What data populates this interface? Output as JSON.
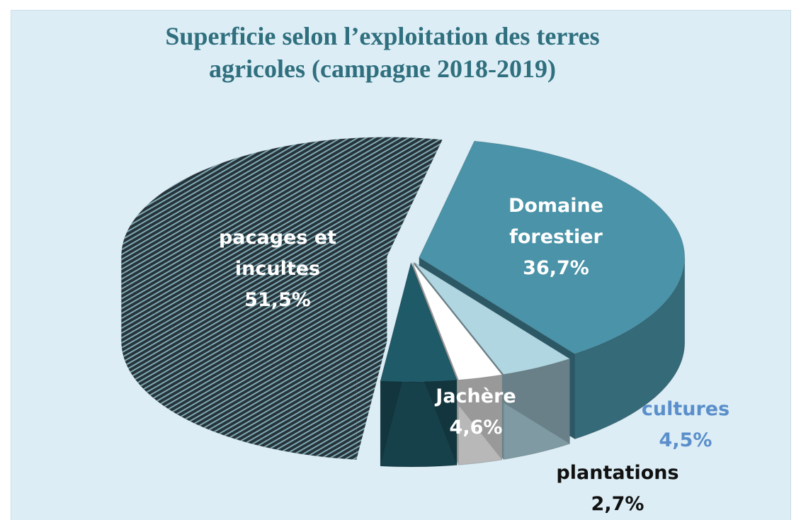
{
  "chart_data": {
    "type": "pie3d",
    "title": "Superficie selon l’exploitation des terres agricoles (campagne  2018-2019)",
    "categories": [
      "Domaine forestier",
      "cultures",
      "plantations",
      "Jachère",
      "pacages et incultes"
    ],
    "values": [
      36.7,
      4.5,
      2.7,
      4.6,
      51.5
    ],
    "value_labels": [
      "36,7%",
      "4,5%",
      "2,7%",
      "4,6%",
      "51,5%"
    ],
    "colors": [
      "#4a93a8",
      "#b0d6e2",
      "#ffffff",
      "#1f5a68",
      "#2b3b42"
    ]
  }
}
